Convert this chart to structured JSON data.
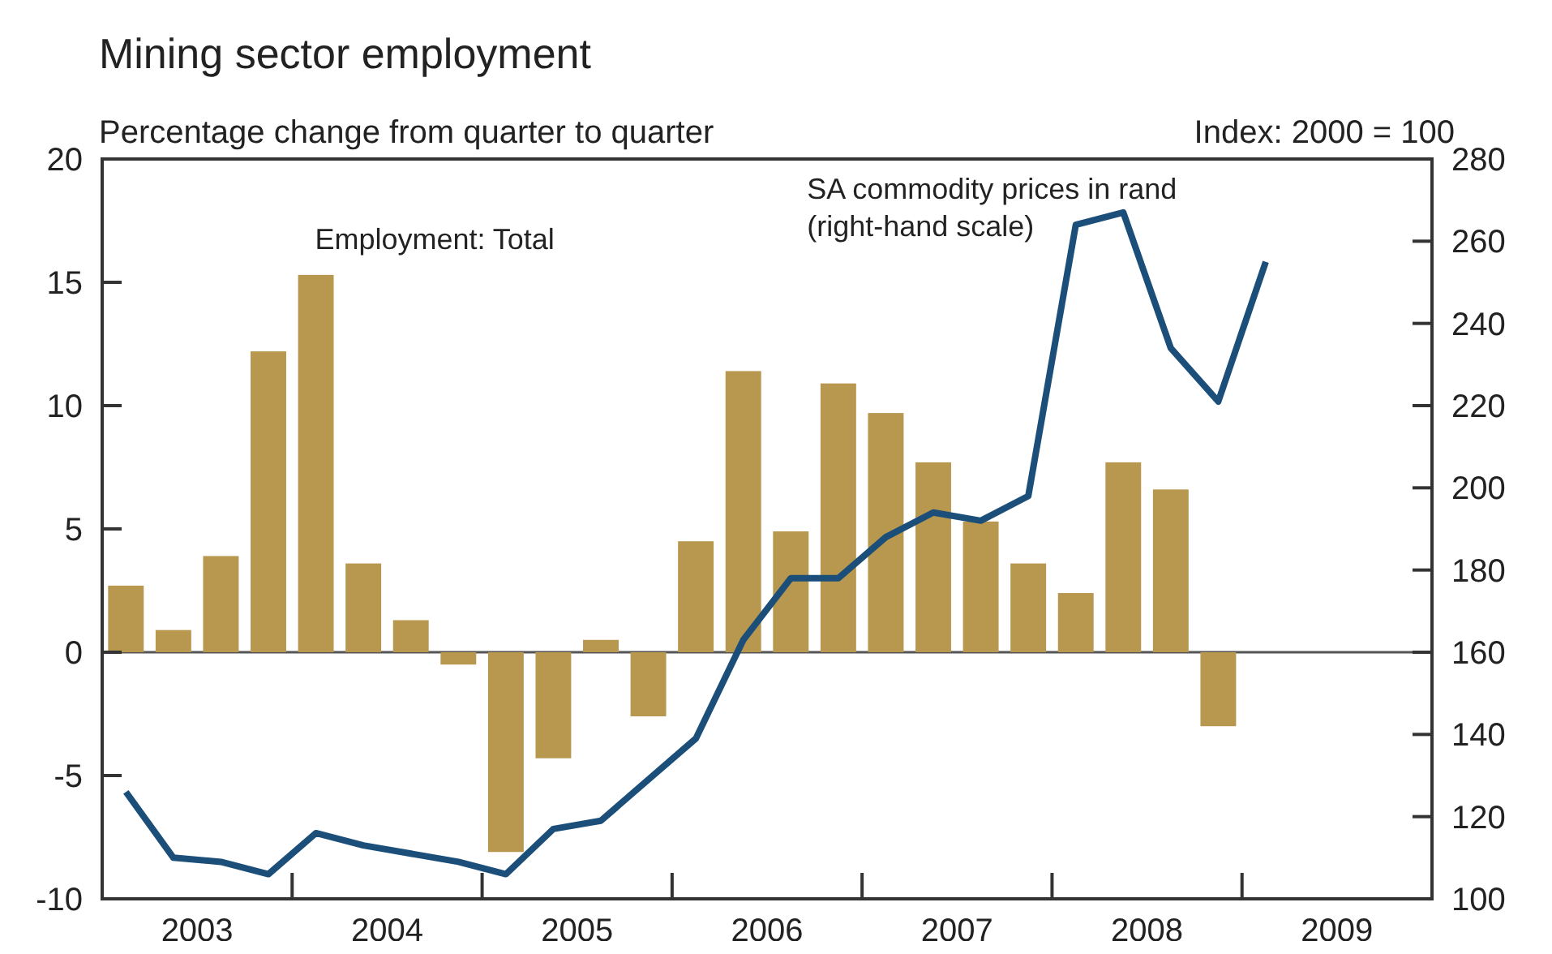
{
  "chart_data": {
    "type": "bar",
    "title": "Mining sector employment",
    "ylabel": "Percentage change from quarter to quarter",
    "y2label": "Index: 2000 = 100",
    "x": [
      2003.125,
      2003.375,
      2003.625,
      2003.875,
      2004.125,
      2004.375,
      2004.625,
      2004.875,
      2005.125,
      2005.375,
      2005.625,
      2005.875,
      2006.125,
      2006.375,
      2006.625,
      2006.875,
      2007.125,
      2007.375,
      2007.625,
      2007.875,
      2008.125,
      2008.375,
      2008.625,
      2008.875,
      2009.125
    ],
    "series": [
      {
        "name": "Employment: Total",
        "color": "#b8974f",
        "values": [
          2.7,
          0.9,
          3.9,
          12.2,
          15.3,
          3.6,
          1.3,
          -0.5,
          -8.1,
          -4.3,
          0.5,
          -2.6,
          4.5,
          11.4,
          4.9,
          10.9,
          9.7,
          7.7,
          5.3,
          3.6,
          2.4,
          7.7,
          6.6,
          -3.0,
          null
        ]
      },
      {
        "name": "SA commodity prices in rand (right-hand scale)",
        "type": "line",
        "axis": "y2",
        "color": "#1b4f7a",
        "values": [
          126,
          110,
          109,
          106,
          116,
          113,
          111,
          109,
          106,
          117,
          119,
          129,
          139,
          163,
          178,
          178,
          188,
          194,
          192,
          198,
          264,
          267,
          234,
          221,
          255
        ]
      }
    ],
    "xlim": [
      2003,
      2010
    ],
    "xticks": [
      {
        "value": 2003.5,
        "label": "2003"
      },
      {
        "value": 2004,
        "label": null
      },
      {
        "value": 2004.5,
        "label": "2004"
      },
      {
        "value": 2005,
        "label": null
      },
      {
        "value": 2005.5,
        "label": "2005"
      },
      {
        "value": 2006,
        "label": null
      },
      {
        "value": 2006.5,
        "label": "2006"
      },
      {
        "value": 2007,
        "label": null
      },
      {
        "value": 2007.5,
        "label": "2007"
      },
      {
        "value": 2008,
        "label": null
      },
      {
        "value": 2008.5,
        "label": "2008"
      },
      {
        "value": 2009,
        "label": null
      },
      {
        "value": 2009.5,
        "label": "2009"
      }
    ],
    "ylim": [
      -10,
      20
    ],
    "yticks": [
      -10,
      -5,
      0,
      5,
      10,
      15,
      20
    ],
    "y2lim": [
      100,
      280
    ],
    "y2ticks": [
      100,
      120,
      140,
      160,
      180,
      200,
      220,
      240,
      260,
      280
    ],
    "ref_lines": [
      {
        "axis": "y",
        "value": 0,
        "color": "#555555"
      }
    ],
    "legend": false,
    "line_style": "solid",
    "marker": "none"
  }
}
